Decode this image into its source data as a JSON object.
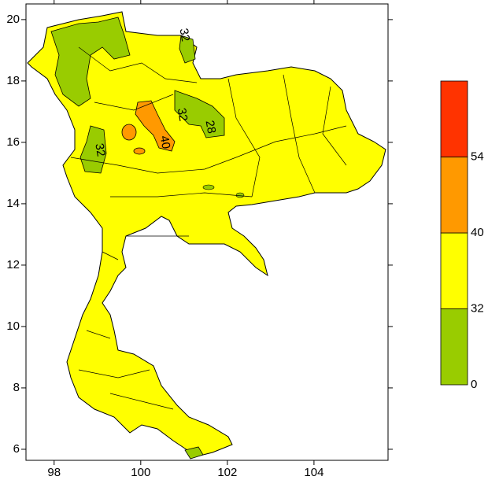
{
  "map": {
    "type": "contour-map",
    "xlim": [
      97.35,
      105.71
    ],
    "ylim": [
      5.64,
      20.51
    ],
    "xticks": [
      98,
      100,
      102,
      104
    ],
    "yticks": [
      6,
      8,
      10,
      12,
      14,
      16,
      18,
      20
    ],
    "colorbar": {
      "levels": [
        0,
        32,
        40,
        54
      ],
      "colors": [
        "#99cc00",
        "#ffff00",
        "#ff9900",
        "#ff3300"
      ]
    },
    "contour_labels": [
      {
        "text": "32",
        "lon": 101.0,
        "lat": 19.5
      },
      {
        "text": "32",
        "lon": 99.05,
        "lat": 15.75
      },
      {
        "text": "32",
        "lon": 100.95,
        "lat": 16.9
      },
      {
        "text": "28",
        "lon": 101.6,
        "lat": 16.5
      },
      {
        "text": "40",
        "lon": 100.55,
        "lat": 16.0
      }
    ]
  }
}
